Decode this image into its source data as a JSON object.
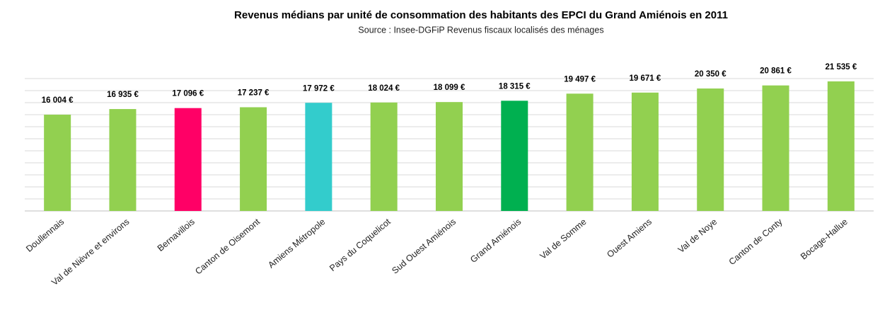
{
  "chart_data": {
    "type": "bar",
    "title": "Revenus médians par unité de consommation des habitants des EPCI du Grand Amiénois en 2011",
    "subtitle": "Source : Insee-DGFiP Revenus fiscaux localisés des ménages",
    "categories": [
      "Doullennais",
      "Val de Nièvre et environs",
      "Bernavillois",
      "Canton de Oisemont",
      "Amiens Métropole",
      "Pays du Coquelicot",
      "Sud Ouest Amiénois",
      "Grand Amiénois",
      "Val de Somme",
      "Ouest Amiens",
      "Val de Noye",
      "Canton de Conty",
      "Bocage-Hallue"
    ],
    "values": [
      16004,
      16935,
      17096,
      17237,
      17972,
      18024,
      18099,
      18315,
      19497,
      19671,
      20350,
      20861,
      21535
    ],
    "value_labels": [
      "16 004 €",
      "16 935 €",
      "17 096 €",
      "17 237 €",
      "17 972 €",
      "18 024 €",
      "18 099 €",
      "18 315 €",
      "19 497 €",
      "19 671 €",
      "20 350 €",
      "20 861 €",
      "21 535 €"
    ],
    "colors": [
      "#92d050",
      "#92d050",
      "#ff0066",
      "#92d050",
      "#33cccc",
      "#92d050",
      "#92d050",
      "#00b050",
      "#92d050",
      "#92d050",
      "#92d050",
      "#92d050",
      "#92d050"
    ],
    "ylim": [
      0,
      22000
    ],
    "yticks": [
      0,
      2000,
      4000,
      6000,
      8000,
      10000,
      12000,
      14000,
      16000,
      18000,
      20000,
      22000
    ],
    "grid": true
  }
}
